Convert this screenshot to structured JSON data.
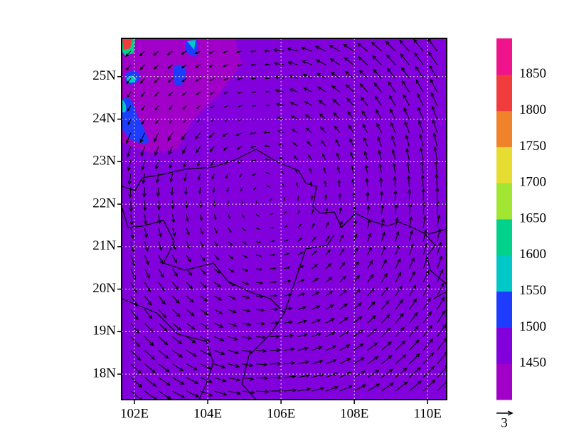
{
  "map": {
    "lat_ticks": [
      {
        "value": 18,
        "label": "18N"
      },
      {
        "value": 19,
        "label": "19N"
      },
      {
        "value": 20,
        "label": "20N"
      },
      {
        "value": 21,
        "label": "21N"
      },
      {
        "value": 22,
        "label": "22N"
      },
      {
        "value": 23,
        "label": "23N"
      },
      {
        "value": 24,
        "label": "24N"
      },
      {
        "value": 25,
        "label": "25N"
      }
    ],
    "lon_ticks": [
      {
        "value": 102,
        "label": "102E"
      },
      {
        "value": 104,
        "label": "104E"
      },
      {
        "value": 106,
        "label": "106E"
      },
      {
        "value": 108,
        "label": "108E"
      },
      {
        "value": 110,
        "label": "110E"
      }
    ],
    "colorbar": {
      "levels": [
        1450,
        1500,
        1550,
        1600,
        1650,
        1700,
        1750,
        1800,
        1850
      ],
      "colors": [
        "#a000c8",
        "#8200dc",
        "#1e3cff",
        "#00c8c8",
        "#00d28c",
        "#a0e632",
        "#e6dc32",
        "#f0822a",
        "#f03c3c",
        "#f0148c"
      ]
    },
    "vector_reference": 3
  }
}
